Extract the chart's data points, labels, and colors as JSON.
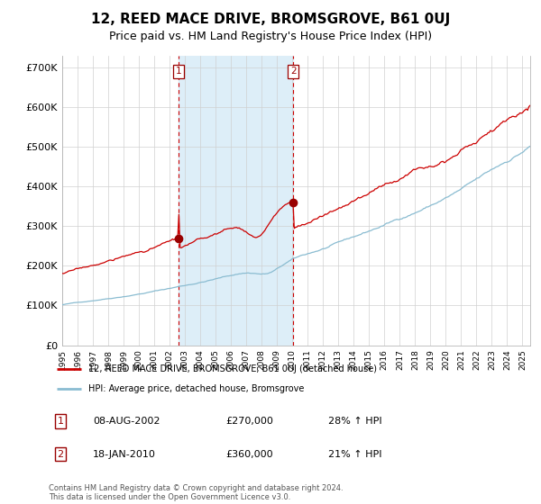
{
  "title": "12, REED MACE DRIVE, BROMSGROVE, B61 0UJ",
  "subtitle": "Price paid vs. HM Land Registry's House Price Index (HPI)",
  "ylabel_ticks": [
    "£0",
    "£100K",
    "£200K",
    "£300K",
    "£400K",
    "£500K",
    "£600K",
    "£700K"
  ],
  "ytick_vals": [
    0,
    100000,
    200000,
    300000,
    400000,
    500000,
    600000,
    700000
  ],
  "ylim": [
    0,
    730000
  ],
  "xlim_start": 1995.0,
  "xlim_end": 2025.5,
  "sale1_date": 2002.6,
  "sale1_price": 270000,
  "sale2_date": 2010.05,
  "sale2_price": 360000,
  "hpi_color": "#8abcd1",
  "price_color": "#cc0000",
  "shade_color": "#ddeef8",
  "dashed_color": "#cc0000",
  "legend_price_label": "12, REED MACE DRIVE, BROMSGROVE, B61 0UJ (detached house)",
  "legend_hpi_label": "HPI: Average price, detached house, Bromsgrove",
  "footer": "Contains HM Land Registry data © Crown copyright and database right 2024.\nThis data is licensed under the Open Government Licence v3.0.",
  "title_fontsize": 11,
  "subtitle_fontsize": 9,
  "tick_fontsize": 8
}
